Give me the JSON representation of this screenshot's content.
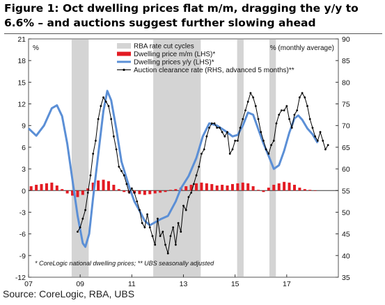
{
  "title": "Figure 1: Oct dwelling prices flat m/m, dragging the y/y to 6.6% – and auctions suggest further slowing ahead",
  "source": "Source: CoreLogic, RBA, UBS",
  "chart_data": {
    "type": "line",
    "left_unit": "%",
    "right_unit": "% (monthly average)",
    "footnote": "* CoreLogic national dwelling prices; ** UBS seasonally adjusted",
    "x_ticks": [
      "07",
      "09",
      "11",
      "13",
      "15",
      "17"
    ],
    "x_tick_years": [
      2007,
      2009,
      2011,
      2013,
      2015,
      2017
    ],
    "x_range": [
      2007.0,
      2019.0
    ],
    "ylim_left": [
      -12,
      21
    ],
    "ylim_right": [
      35,
      90
    ],
    "left_ticks": [
      -12,
      -9,
      -6,
      -3,
      0,
      3,
      6,
      9,
      12,
      15,
      18,
      21
    ],
    "right_ticks": [
      35,
      40,
      45,
      50,
      55,
      60,
      65,
      70,
      75,
      80,
      85,
      90
    ],
    "grid": false,
    "legend_position": "top-center",
    "colors": {
      "rba_shade": "#d4d4d4",
      "mm_bars": "#e31b23",
      "yy_line": "#5b8fd6",
      "auction_line": "#000000"
    },
    "legend": [
      {
        "label": "RBA rate cut cycles",
        "kind": "shade"
      },
      {
        "label": "Dwelling price m/m (LHS)*",
        "kind": "bar"
      },
      {
        "label": "Dwelling prices y/y (LHS)*",
        "kind": "line"
      },
      {
        "label": "Auction clearance rate (RHS, advanced 5 months)**",
        "kind": "line-marker"
      }
    ],
    "rba_cut_cycles": [
      [
        2008.67,
        2009.33
      ],
      [
        2011.83,
        2013.67
      ],
      [
        2015.08,
        2015.33
      ],
      [
        2016.33,
        2016.58
      ]
    ],
    "series": [
      {
        "name": "Dwelling prices y/y (LHS)*",
        "axis": "left",
        "points": [
          [
            2007.0,
            8.6
          ],
          [
            2007.3,
            7.6
          ],
          [
            2007.6,
            9.0
          ],
          [
            2007.9,
            11.4
          ],
          [
            2008.1,
            11.8
          ],
          [
            2008.3,
            10.3
          ],
          [
            2008.5,
            6.5
          ],
          [
            2008.7,
            1.5
          ],
          [
            2008.9,
            -3.5
          ],
          [
            2009.1,
            -7.3
          ],
          [
            2009.2,
            -7.8
          ],
          [
            2009.35,
            -6.0
          ],
          [
            2009.5,
            -1.0
          ],
          [
            2009.7,
            5.0
          ],
          [
            2009.9,
            11.0
          ],
          [
            2010.05,
            13.8
          ],
          [
            2010.2,
            12.5
          ],
          [
            2010.4,
            8.5
          ],
          [
            2010.6,
            4.0
          ],
          [
            2010.9,
            0.5
          ],
          [
            2011.1,
            -1.5
          ],
          [
            2011.3,
            -2.8
          ],
          [
            2011.5,
            -4.2
          ],
          [
            2011.7,
            -4.8
          ],
          [
            2011.9,
            -4.4
          ],
          [
            2012.1,
            -4.0
          ],
          [
            2012.4,
            -3.5
          ],
          [
            2012.7,
            -1.5
          ],
          [
            2012.9,
            0.3
          ],
          [
            2013.2,
            2.0
          ],
          [
            2013.5,
            4.5
          ],
          [
            2013.75,
            7.5
          ],
          [
            2014.0,
            9.3
          ],
          [
            2014.3,
            9.0
          ],
          [
            2014.6,
            8.3
          ],
          [
            2014.9,
            7.5
          ],
          [
            2015.1,
            7.7
          ],
          [
            2015.3,
            9.0
          ],
          [
            2015.5,
            10.8
          ],
          [
            2015.7,
            10.5
          ],
          [
            2015.9,
            8.5
          ],
          [
            2016.1,
            6.5
          ],
          [
            2016.3,
            4.8
          ],
          [
            2016.5,
            3.0
          ],
          [
            2016.7,
            3.5
          ],
          [
            2016.9,
            5.5
          ],
          [
            2017.1,
            8.0
          ],
          [
            2017.3,
            10.0
          ],
          [
            2017.45,
            10.4
          ],
          [
            2017.6,
            9.8
          ],
          [
            2017.8,
            8.6
          ],
          [
            2018.0,
            7.8
          ],
          [
            2018.2,
            6.6
          ]
        ]
      },
      {
        "name": "Auction clearance rate (RHS, advanced 5 months)**",
        "axis": "right",
        "points": [
          [
            2008.9,
            45.5
          ],
          [
            2009.0,
            46.5
          ],
          [
            2009.1,
            48.5
          ],
          [
            2009.2,
            50.5
          ],
          [
            2009.3,
            54.5
          ],
          [
            2009.4,
            58.5
          ],
          [
            2009.5,
            63.5
          ],
          [
            2009.6,
            66.5
          ],
          [
            2009.7,
            71.5
          ],
          [
            2009.8,
            74.5
          ],
          [
            2009.9,
            76.5
          ],
          [
            2010.0,
            75.5
          ],
          [
            2010.1,
            74.5
          ],
          [
            2010.2,
            71.5
          ],
          [
            2010.3,
            67.5
          ],
          [
            2010.4,
            64.5
          ],
          [
            2010.5,
            60.5
          ],
          [
            2010.6,
            59.5
          ],
          [
            2010.7,
            58.5
          ],
          [
            2010.8,
            56.5
          ],
          [
            2010.9,
            54.5
          ],
          [
            2011.0,
            55.5
          ],
          [
            2011.1,
            54.5
          ],
          [
            2011.2,
            52.5
          ],
          [
            2011.3,
            50.5
          ],
          [
            2011.4,
            47.5
          ],
          [
            2011.5,
            46.5
          ],
          [
            2011.6,
            49.5
          ],
          [
            2011.7,
            46.5
          ],
          [
            2011.8,
            44.5
          ],
          [
            2011.9,
            42.5
          ],
          [
            2012.0,
            48.5
          ],
          [
            2012.1,
            44.5
          ],
          [
            2012.2,
            45.5
          ],
          [
            2012.3,
            42.5
          ],
          [
            2012.4,
            40.5
          ],
          [
            2012.5,
            44.5
          ],
          [
            2012.6,
            46.5
          ],
          [
            2012.7,
            42.5
          ],
          [
            2012.8,
            47.5
          ],
          [
            2012.9,
            45.5
          ],
          [
            2013.0,
            51.5
          ],
          [
            2013.1,
            50.5
          ],
          [
            2013.2,
            53.5
          ],
          [
            2013.3,
            54.5
          ],
          [
            2013.4,
            56.5
          ],
          [
            2013.5,
            58.5
          ],
          [
            2013.6,
            60.5
          ],
          [
            2013.7,
            63.5
          ],
          [
            2013.8,
            64.5
          ],
          [
            2013.9,
            67.5
          ],
          [
            2014.0,
            69.5
          ],
          [
            2014.1,
            70.5
          ],
          [
            2014.2,
            70.5
          ],
          [
            2014.3,
            69.5
          ],
          [
            2014.4,
            69.5
          ],
          [
            2014.5,
            68.5
          ],
          [
            2014.6,
            67.5
          ],
          [
            2014.7,
            68.5
          ],
          [
            2014.8,
            63.5
          ],
          [
            2014.9,
            64.5
          ],
          [
            2015.0,
            66.5
          ],
          [
            2015.1,
            66.5
          ],
          [
            2015.2,
            69.5
          ],
          [
            2015.3,
            71.5
          ],
          [
            2015.4,
            73.5
          ],
          [
            2015.5,
            75.5
          ],
          [
            2015.6,
            77.5
          ],
          [
            2015.7,
            76.5
          ],
          [
            2015.8,
            74.5
          ],
          [
            2015.9,
            71.5
          ],
          [
            2016.0,
            68.5
          ],
          [
            2016.1,
            66.5
          ],
          [
            2016.2,
            64.5
          ],
          [
            2016.3,
            63.5
          ],
          [
            2016.4,
            65.5
          ],
          [
            2016.5,
            66.5
          ],
          [
            2016.6,
            70.5
          ],
          [
            2016.7,
            72.5
          ],
          [
            2016.8,
            73.5
          ],
          [
            2016.9,
            73.5
          ],
          [
            2017.0,
            74.5
          ],
          [
            2017.1,
            71.5
          ],
          [
            2017.2,
            69.5
          ],
          [
            2017.3,
            72.5
          ],
          [
            2017.4,
            73.5
          ],
          [
            2017.5,
            76.5
          ],
          [
            2017.6,
            77.5
          ],
          [
            2017.7,
            76.5
          ],
          [
            2017.8,
            74.5
          ],
          [
            2017.9,
            71.5
          ],
          [
            2018.0,
            69.5
          ],
          [
            2018.1,
            67.5
          ],
          [
            2018.2,
            66.5
          ],
          [
            2018.3,
            68.5
          ],
          [
            2018.4,
            66.5
          ],
          [
            2018.5,
            64.5
          ],
          [
            2018.6,
            65.5
          ]
        ]
      },
      {
        "name": "Dwelling price m/m (LHS)*",
        "axis": "left",
        "kind": "bar",
        "points": [
          [
            2007.1,
            0.6
          ],
          [
            2007.3,
            0.8
          ],
          [
            2007.5,
            0.9
          ],
          [
            2007.7,
            1.0
          ],
          [
            2007.9,
            1.1
          ],
          [
            2008.1,
            0.7
          ],
          [
            2008.3,
            0.2
          ],
          [
            2008.5,
            -0.4
          ],
          [
            2008.7,
            -0.7
          ],
          [
            2008.9,
            -0.9
          ],
          [
            2009.1,
            -0.6
          ],
          [
            2009.3,
            0.3
          ],
          [
            2009.5,
            1.1
          ],
          [
            2009.7,
            1.4
          ],
          [
            2009.9,
            1.5
          ],
          [
            2010.1,
            1.3
          ],
          [
            2010.3,
            0.8
          ],
          [
            2010.5,
            0.2
          ],
          [
            2010.7,
            -0.2
          ],
          [
            2010.9,
            -0.3
          ],
          [
            2011.1,
            -0.4
          ],
          [
            2011.3,
            -0.5
          ],
          [
            2011.5,
            -0.6
          ],
          [
            2011.7,
            -0.5
          ],
          [
            2011.9,
            -0.4
          ],
          [
            2012.1,
            -0.3
          ],
          [
            2012.3,
            -0.2
          ],
          [
            2012.5,
            0.1
          ],
          [
            2012.7,
            0.2
          ],
          [
            2012.9,
            0.4
          ],
          [
            2013.1,
            0.6
          ],
          [
            2013.3,
            0.8
          ],
          [
            2013.5,
            1.0
          ],
          [
            2013.7,
            1.1
          ],
          [
            2013.9,
            1.0
          ],
          [
            2014.1,
            0.9
          ],
          [
            2014.3,
            0.7
          ],
          [
            2014.5,
            0.8
          ],
          [
            2014.7,
            0.7
          ],
          [
            2014.9,
            0.9
          ],
          [
            2015.1,
            1.0
          ],
          [
            2015.3,
            1.1
          ],
          [
            2015.5,
            1.0
          ],
          [
            2015.7,
            0.6
          ],
          [
            2015.9,
            0.1
          ],
          [
            2016.1,
            -0.2
          ],
          [
            2016.3,
            0.4
          ],
          [
            2016.5,
            0.8
          ],
          [
            2016.7,
            1.0
          ],
          [
            2016.9,
            1.2
          ],
          [
            2017.1,
            1.1
          ],
          [
            2017.3,
            0.8
          ],
          [
            2017.5,
            0.4
          ],
          [
            2017.7,
            0.2
          ],
          [
            2017.9,
            0.1
          ],
          [
            2018.1,
            0.0
          ]
        ]
      }
    ]
  }
}
